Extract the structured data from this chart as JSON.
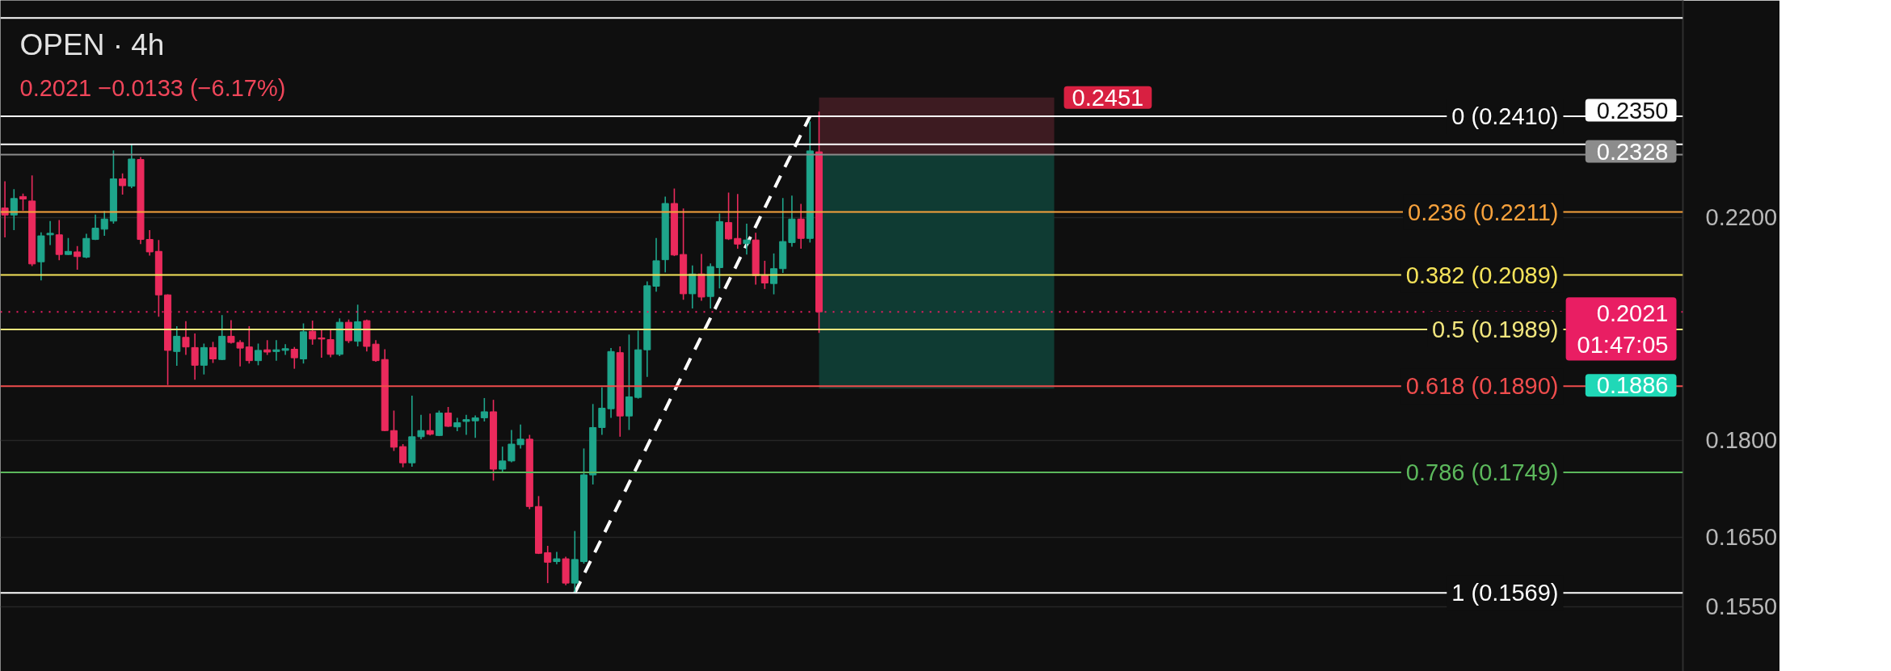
{
  "chart_data": {
    "type": "candlestick",
    "title": "OPEN · 4h",
    "subtitle": "0.2021 −0.0133 (−6.17%)",
    "categories": [
      null,
      null,
      null,
      null,
      null,
      null,
      null,
      null,
      null,
      null,
      null,
      null,
      null,
      null,
      null,
      null,
      null,
      null,
      null,
      null,
      null,
      null,
      null,
      null,
      null,
      null,
      null,
      null,
      null,
      null,
      null,
      null,
      null,
      null,
      null,
      null,
      null,
      null,
      null,
      null,
      null,
      null,
      null,
      null,
      null,
      null,
      null,
      null,
      null,
      null,
      null,
      null,
      null,
      null,
      null,
      null,
      null,
      null,
      null,
      null,
      null,
      null,
      null,
      null,
      null,
      null,
      null,
      null,
      null,
      null,
      null,
      null,
      null,
      null,
      null,
      null,
      null,
      null,
      null,
      null,
      null,
      null,
      null,
      null,
      null,
      null,
      null,
      null,
      null,
      null,
      null,
      null,
      null,
      null,
      null,
      null,
      null,
      null,
      null,
      null,
      null,
      null,
      null,
      null,
      null,
      null,
      null,
      null,
      null,
      null,
      null,
      null,
      null,
      null,
      null,
      null,
      null,
      null,
      null,
      null,
      null,
      null,
      null,
      null,
      null,
      null,
      null,
      null,
      null,
      null,
      null,
      null,
      null,
      null,
      null,
      null,
      null,
      null,
      null,
      null,
      null,
      null,
      null,
      null,
      null,
      null,
      null,
      null,
      null,
      null,
      null,
      null,
      null,
      null,
      null,
      null,
      null,
      null,
      null,
      null,
      null,
      null,
      null,
      null,
      null,
      null,
      null,
      null,
      null,
      null,
      null,
      null,
      null,
      null,
      null,
      null,
      null,
      null,
      null,
      null,
      null,
      null,
      null,
      null,
      null,
      null
    ],
    "ohlc": [
      [
        0.2219,
        0.2273,
        0.2161,
        0.2205
      ],
      [
        0.2205,
        0.2257,
        0.2175,
        0.2238
      ],
      [
        0.2242,
        0.2248,
        0.2214,
        0.2237
      ],
      [
        0.2233,
        0.2285,
        0.2106,
        0.211
      ],
      [
        0.2114,
        0.2171,
        0.2079,
        0.2164
      ],
      [
        0.2166,
        0.2193,
        0.2146,
        0.2169
      ],
      [
        0.2166,
        0.2195,
        0.2117,
        0.2128
      ],
      [
        0.2128,
        0.216,
        0.2127,
        0.2134
      ],
      [
        0.2133,
        0.2144,
        0.2099,
        0.2124
      ],
      [
        0.2123,
        0.2168,
        0.2121,
        0.2159
      ],
      [
        0.2157,
        0.2206,
        0.2156,
        0.2179
      ],
      [
        0.2177,
        0.2213,
        0.2164,
        0.2197
      ],
      [
        0.2193,
        0.2337,
        0.2188,
        0.2278
      ],
      [
        0.2278,
        0.2289,
        0.2246,
        0.2264
      ],
      [
        0.2263,
        0.235,
        0.2259,
        0.2319
      ],
      [
        0.2318,
        0.2323,
        0.2148,
        0.2157
      ],
      [
        0.2157,
        0.2175,
        0.2126,
        0.2133
      ],
      [
        0.2134,
        0.2156,
        0.2012,
        0.2052
      ],
      [
        0.2052,
        0.2053,
        0.1892,
        0.1952
      ],
      [
        0.195,
        0.1995,
        0.1925,
        0.1977
      ],
      [
        0.1975,
        0.2004,
        0.1944,
        0.1958
      ],
      [
        0.1957,
        0.1982,
        0.1901,
        0.1926
      ],
      [
        0.1926,
        0.1964,
        0.191,
        0.1957
      ],
      [
        0.1957,
        0.1967,
        0.193,
        0.1937
      ],
      [
        0.1936,
        0.2015,
        0.1935,
        0.1977
      ],
      [
        0.1977,
        0.2006,
        0.1964,
        0.1966
      ],
      [
        0.1966,
        0.197,
        0.1924,
        0.1956
      ],
      [
        0.1958,
        0.1995,
        0.1929,
        0.1934
      ],
      [
        0.1934,
        0.1964,
        0.1926,
        0.1952
      ],
      [
        0.1953,
        0.197,
        0.1944,
        0.1949
      ],
      [
        0.195,
        0.197,
        0.1934,
        0.1953
      ],
      [
        0.1952,
        0.1963,
        0.1944,
        0.1955
      ],
      [
        0.1954,
        0.1958,
        0.192,
        0.1939
      ],
      [
        0.1937,
        0.2,
        0.1929,
        0.1985
      ],
      [
        0.1986,
        0.2005,
        0.1962,
        0.1972
      ],
      [
        0.1974,
        0.199,
        0.1939,
        0.1972
      ],
      [
        0.1971,
        0.1988,
        0.194,
        0.1945
      ],
      [
        0.1945,
        0.2009,
        0.1942,
        0.2002
      ],
      [
        0.2002,
        0.2007,
        0.1965,
        0.1969
      ],
      [
        0.1968,
        0.2034,
        0.1959,
        0.2003
      ],
      [
        0.2005,
        0.2007,
        0.195,
        0.1959
      ],
      [
        0.1963,
        0.197,
        0.1932,
        0.1934
      ],
      [
        0.1936,
        0.1954,
        0.1815,
        0.1816
      ],
      [
        0.1816,
        0.1849,
        0.1783,
        0.1789
      ],
      [
        0.179,
        0.1794,
        0.1757,
        0.1764
      ],
      [
        0.1764,
        0.1874,
        0.1758,
        0.1806
      ],
      [
        0.1806,
        0.1842,
        0.1802,
        0.1816
      ],
      [
        0.1816,
        0.1844,
        0.1808,
        0.181
      ],
      [
        0.1808,
        0.1849,
        0.1807,
        0.1845
      ],
      [
        0.1845,
        0.1855,
        0.1822,
        0.1823
      ],
      [
        0.1822,
        0.1837,
        0.1815,
        0.1829
      ],
      [
        0.1831,
        0.1842,
        0.1809,
        0.1834
      ],
      [
        0.1832,
        0.1841,
        0.1804,
        0.1837
      ],
      [
        0.1837,
        0.187,
        0.1831,
        0.1847
      ],
      [
        0.1847,
        0.1867,
        0.1736,
        0.1754
      ],
      [
        0.1754,
        0.179,
        0.175,
        0.1767
      ],
      [
        0.1767,
        0.1817,
        0.1765,
        0.1794
      ],
      [
        0.1793,
        0.1826,
        0.1787,
        0.1802
      ],
      [
        0.1802,
        0.1809,
        0.1692,
        0.1696
      ],
      [
        0.1696,
        0.1712,
        0.1625,
        0.1626
      ],
      [
        0.1627,
        0.1637,
        0.1583,
        0.1613
      ],
      [
        0.1614,
        0.1628,
        0.161,
        0.1618
      ],
      [
        0.1618,
        0.1621,
        0.158,
        0.1583
      ],
      [
        0.1583,
        0.1659,
        0.1569,
        0.1617
      ],
      [
        0.1614,
        0.1787,
        0.1611,
        0.1745
      ],
      [
        0.1745,
        0.186,
        0.173,
        0.1821
      ],
      [
        0.1821,
        0.1888,
        0.1809,
        0.1853
      ],
      [
        0.1852,
        0.1956,
        0.1837,
        0.195
      ],
      [
        0.1948,
        0.1959,
        0.1806,
        0.184
      ],
      [
        0.184,
        0.198,
        0.1817,
        0.1872
      ],
      [
        0.1871,
        0.1987,
        0.1869,
        0.1953
      ],
      [
        0.1953,
        0.2077,
        0.1906,
        0.2069
      ],
      [
        0.2068,
        0.216,
        0.2058,
        0.2116
      ],
      [
        0.2118,
        0.2242,
        0.2094,
        0.2228
      ],
      [
        0.2228,
        0.2258,
        0.2125,
        0.2127
      ],
      [
        0.2128,
        0.2218,
        0.2043,
        0.2054
      ],
      [
        0.2054,
        0.2107,
        0.2027,
        0.2091
      ],
      [
        0.2091,
        0.2129,
        0.2041,
        0.2048
      ],
      [
        0.2049,
        0.2111,
        0.2027,
        0.2105
      ],
      [
        0.2103,
        0.2208,
        0.2064,
        0.2192
      ],
      [
        0.219,
        0.225,
        0.2156,
        0.2158
      ],
      [
        0.2159,
        0.2247,
        0.2139,
        0.2148
      ],
      [
        0.2149,
        0.2188,
        0.2128,
        0.2156
      ],
      [
        0.2156,
        0.217,
        0.2071,
        0.2088
      ],
      [
        0.2088,
        0.2116,
        0.2063,
        0.2074
      ],
      [
        0.2073,
        0.213,
        0.2053,
        0.2101
      ],
      [
        0.2101,
        0.2239,
        0.2093,
        0.2153
      ],
      [
        0.2151,
        0.2244,
        0.2143,
        0.2197
      ],
      [
        0.2197,
        0.2227,
        0.2139,
        0.2159
      ],
      [
        0.2159,
        0.2399,
        0.2151,
        0.2336
      ],
      [
        0.2334,
        0.242,
        0.1983,
        0.2021
      ],
      null,
      null,
      null,
      null,
      null,
      null,
      null,
      null,
      null,
      null,
      null,
      null,
      null,
      null,
      null,
      null,
      null,
      null,
      null,
      null,
      null,
      null,
      null,
      null,
      null,
      null,
      null,
      null,
      null,
      null,
      null,
      null,
      null,
      null,
      null,
      null,
      null,
      null,
      null,
      null,
      null,
      null,
      null,
      null,
      null,
      null,
      null,
      null,
      null,
      null,
      null,
      null,
      null,
      null,
      null,
      null,
      null,
      null,
      null,
      null,
      null,
      null,
      null,
      null,
      null,
      null,
      null,
      null,
      null,
      null,
      null,
      null,
      null,
      null,
      null,
      null,
      null,
      null,
      null,
      null,
      null,
      null,
      null,
      null,
      null,
      null,
      null,
      null,
      null,
      null,
      null,
      null,
      null,
      null,
      null
    ],
    "colors": [
      "#ea2a5c",
      "#1ea58b",
      "#ea2a5c",
      "#ea2a5c",
      "#1ea58b",
      "#1ea58b",
      "#ea2a5c",
      "#1ea58b",
      "#ea2a5c",
      "#1ea58b",
      "#1ea58b",
      "#1ea58b",
      "#1ea58b",
      "#ea2a5c",
      "#1ea58b",
      "#ea2a5c",
      "#ea2a5c",
      "#ea2a5c",
      "#ea2a5c",
      "#1ea58b",
      "#ea2a5c",
      "#ea2a5c",
      "#1ea58b",
      "#ea2a5c",
      "#1ea58b",
      "#ea2a5c",
      "#ea2a5c",
      "#ea2a5c",
      "#1ea58b",
      "#ea2a5c",
      "#1ea58b",
      "#1ea58b",
      "#ea2a5c",
      "#1ea58b",
      "#ea2a5c",
      "#ea2a5c",
      "#ea2a5c",
      "#1ea58b",
      "#ea2a5c",
      "#1ea58b",
      "#ea2a5c",
      "#ea2a5c",
      "#ea2a5c",
      "#ea2a5c",
      "#ea2a5c",
      "#1ea58b",
      "#1ea58b",
      "#ea2a5c",
      "#1ea58b",
      "#ea2a5c",
      "#1ea58b",
      "#1ea58b",
      "#1ea58b",
      "#1ea58b",
      "#ea2a5c",
      "#1ea58b",
      "#1ea58b",
      "#1ea58b",
      "#ea2a5c",
      "#ea2a5c",
      "#ea2a5c",
      "#1ea58b",
      "#ea2a5c",
      "#1ea58b",
      "#1ea58b",
      "#1ea58b",
      "#1ea58b",
      "#1ea58b",
      "#ea2a5c",
      "#1ea58b",
      "#1ea58b",
      "#1ea58b",
      "#1ea58b",
      "#1ea58b",
      "#ea2a5c",
      "#ea2a5c",
      "#1ea58b",
      "#ea2a5c",
      "#1ea58b",
      "#1ea58b",
      "#ea2a5c",
      "#ea2a5c",
      "#1ea58b",
      "#ea2a5c",
      "#ea2a5c",
      "#1ea58b",
      "#1ea58b",
      "#1ea58b",
      "#ea2a5c",
      "#1ea58b",
      "#ea2a5c",
      null,
      null,
      null,
      null,
      null,
      null,
      null,
      null,
      null,
      null,
      null,
      null,
      null,
      null,
      null,
      null,
      null,
      null,
      null,
      null,
      null,
      null,
      null,
      null,
      null,
      null,
      null,
      null,
      null,
      null,
      null,
      null,
      null,
      null,
      null,
      null,
      null,
      null,
      null,
      null,
      null,
      null,
      null,
      null,
      null,
      null,
      null,
      null,
      null,
      null,
      null,
      null,
      null,
      null,
      null,
      null,
      null,
      null,
      null,
      null,
      null,
      null,
      null,
      null,
      null,
      null,
      null,
      null,
      null,
      null,
      null,
      null,
      null,
      null,
      null,
      null,
      null,
      null,
      null,
      null,
      null,
      null,
      null,
      null,
      null,
      null,
      null,
      null,
      null,
      null,
      null,
      null,
      null,
      null,
      null
    ],
    "series": [
      {
        "type": "line",
        "color": "#ffffff",
        "line_style": "dashed",
        "values": [
          null,
          null,
          null,
          null,
          null,
          null,
          null,
          null,
          null,
          null,
          null,
          null,
          null,
          null,
          null,
          null,
          null,
          null,
          null,
          null,
          null,
          null,
          null,
          null,
          null,
          null,
          null,
          null,
          null,
          null,
          null,
          null,
          null,
          null,
          null,
          null,
          null,
          null,
          null,
          null,
          null,
          null,
          null,
          null,
          null,
          null,
          null,
          null,
          null,
          null,
          null,
          null,
          null,
          null,
          null,
          null,
          null,
          null,
          null,
          null,
          null,
          null,
          null,
          0.1569,
          null,
          null,
          null,
          null,
          null,
          null,
          null,
          null,
          null,
          null,
          null,
          null,
          null,
          null,
          null,
          null,
          null,
          null,
          null,
          null,
          null,
          null,
          null,
          null,
          null,
          0.241,
          null,
          null,
          null,
          null,
          null,
          null,
          null,
          null,
          null,
          null,
          null,
          null,
          null,
          null,
          null,
          null,
          null,
          null,
          null,
          null,
          null,
          null,
          null,
          null,
          null,
          null,
          null,
          null,
          null,
          null,
          null,
          null,
          null,
          null,
          null,
          null,
          null,
          null,
          null,
          null,
          null,
          null,
          null,
          null,
          null,
          null,
          null,
          null,
          null,
          null,
          null,
          null,
          null,
          null,
          null,
          null,
          null,
          null,
          null,
          null,
          null,
          null,
          null,
          null,
          null,
          null,
          null,
          null,
          null,
          null,
          null,
          null,
          null,
          null,
          null,
          null,
          null,
          null,
          null,
          null,
          null,
          null,
          null,
          null,
          null,
          null,
          null,
          null,
          null,
          null,
          null,
          null,
          null,
          null,
          null,
          null
        ]
      }
    ],
    "log": true,
    "ylim": [
      0.1462,
      0.2675
    ],
    "yticks": [
      {
        "value": 0.155,
        "label": "0.1550"
      },
      {
        "value": 0.165,
        "label": "0.1650"
      },
      {
        "value": 0.18,
        "label": "0.1800"
      },
      {
        "value": 0.22,
        "label": "0.2200"
      }
    ],
    "grid": "y",
    "tick_labels": "y",
    "ref_lines": [
      {
        "axis": "y",
        "value": 0.2633,
        "color": "#ffffff"
      },
      {
        "axis": "y",
        "value": 0.241,
        "label": "0 (0.2410)",
        "color": "#ffffff"
      },
      {
        "axis": "y",
        "value": 0.235,
        "color": "#ffffff"
      },
      {
        "axis": "y",
        "value": 0.2328,
        "color": "#8c8c8c"
      },
      {
        "axis": "y",
        "value": 0.2211,
        "label": "0.236 (0.2211)",
        "color": "#f6a13c"
      },
      {
        "axis": "y",
        "value": 0.2089,
        "label": "0.382 (0.2089)",
        "color": "#f5e35a"
      },
      {
        "axis": "y",
        "value": 0.2021,
        "color": "#e91e63",
        "line_style": "dotted"
      },
      {
        "axis": "y",
        "value": 0.1989,
        "label": "0.5 (0.1989)",
        "color": "#f2e67e"
      },
      {
        "axis": "y",
        "value": 0.189,
        "label": "0.618 (0.1890)",
        "color": "#ef4d4d"
      },
      {
        "axis": "y",
        "value": 0.1749,
        "label": "0.786 (0.1749)",
        "color": "#5cb85c"
      },
      {
        "axis": "y",
        "value": 0.1569,
        "label": "1 (0.1569)",
        "color": "#ffffff"
      }
    ],
    "bands": [
      {
        "axis": "y",
        "from": 0.2328,
        "to": 0.2451,
        "color": "#3d1b21",
        "label": "0.2451"
      },
      {
        "axis": "y",
        "from": 0.1886,
        "to": 0.2328,
        "color": "#0f3b33"
      }
    ],
    "annotations": [
      {
        "text": "0.2350",
        "y": 0.235
      },
      {
        "text": "0.2328",
        "y": 0.2328
      },
      {
        "text": "0.2021\n01:47:05",
        "y": 0.2021
      },
      {
        "text": "0.1886",
        "y": 0.1886
      }
    ]
  }
}
